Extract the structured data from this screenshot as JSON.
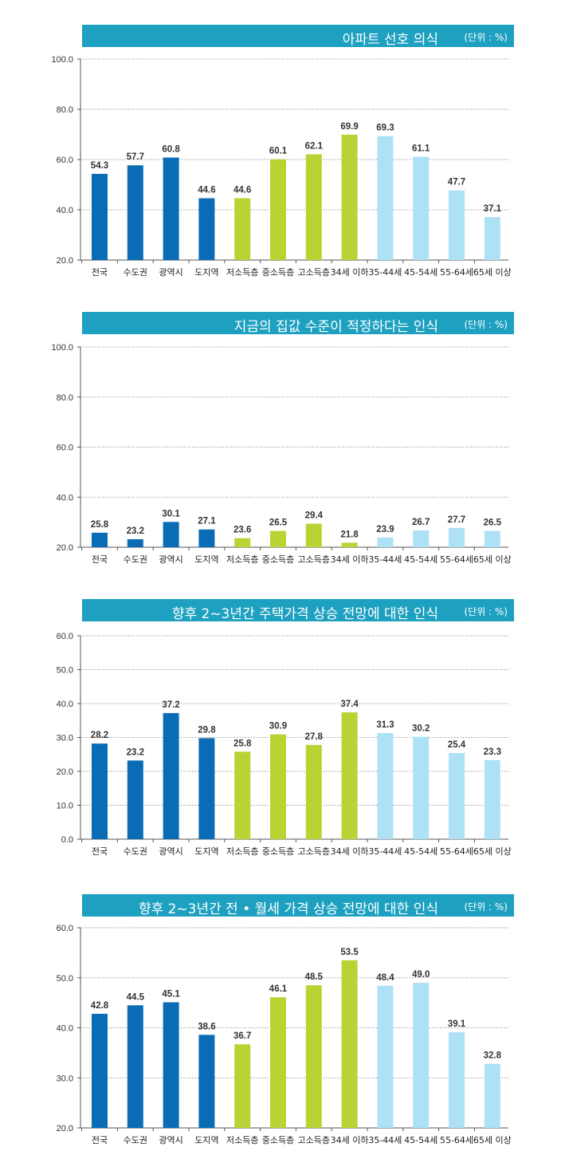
{
  "colors": {
    "title_bg": "#1ea1c0",
    "region": "#0a6cb4",
    "floor": "#b9d334",
    "age": "#aee0f6"
  },
  "chart_data": [
    {
      "type": "bar",
      "title": "아파트 선호 의식",
      "unit": "(단위 : %)",
      "categories": [
        "전국",
        "수도권",
        "광역시",
        "도지역",
        "저소득층",
        "중소득층",
        "고소득층",
        "34세 이하",
        "35-44세",
        "45-54세",
        "55-64세",
        "65세 이상"
      ],
      "values": [
        54.3,
        57.7,
        60.8,
        44.6,
        44.6,
        60.1,
        62.1,
        69.9,
        69.3,
        61.1,
        47.7,
        37.1
      ],
      "groups": [
        "region",
        "region",
        "region",
        "region",
        "floor",
        "floor",
        "floor",
        "floor",
        "age",
        "age",
        "age",
        "age"
      ],
      "ylim": [
        20,
        100
      ],
      "yticks": [
        "20.0",
        "40.0",
        "60.0",
        "80.0",
        "100.0"
      ],
      "grid": true
    },
    {
      "type": "bar",
      "title": "지금의 집값 수준이 적정하다는 인식",
      "unit": "(단위 : %)",
      "categories": [
        "전국",
        "수도권",
        "광역시",
        "도지역",
        "저소득층",
        "중소득층",
        "고소득층",
        "34세 이하",
        "35-44세",
        "45-54세",
        "55-64세",
        "65세 이상"
      ],
      "values": [
        25.8,
        23.2,
        30.1,
        27.1,
        23.6,
        26.5,
        29.4,
        21.8,
        23.9,
        26.7,
        27.7,
        26.5
      ],
      "groups": [
        "region",
        "region",
        "region",
        "region",
        "floor",
        "floor",
        "floor",
        "floor",
        "age",
        "age",
        "age",
        "age"
      ],
      "ylim": [
        20,
        100
      ],
      "yticks": [
        "20.0",
        "40.0",
        "60.0",
        "80.0",
        "100.0"
      ],
      "grid": true
    },
    {
      "type": "bar",
      "title": "향후 2~3년간 주택가격 상승 전망에 대한 인식",
      "unit": "(단위 : %)",
      "categories": [
        "전국",
        "수도권",
        "광역시",
        "도지역",
        "저소득층",
        "중소득층",
        "고소득층",
        "34세 이하",
        "35-44세",
        "45-54세",
        "55-64세",
        "65세 이상"
      ],
      "values": [
        28.2,
        23.2,
        37.2,
        29.8,
        25.8,
        30.9,
        27.8,
        37.4,
        31.3,
        30.2,
        25.4,
        23.3
      ],
      "groups": [
        "region",
        "region",
        "region",
        "region",
        "floor",
        "floor",
        "floor",
        "floor",
        "age",
        "age",
        "age",
        "age"
      ],
      "ylim": [
        0,
        60
      ],
      "yticks": [
        "0.0",
        "10.0",
        "20.0",
        "30.0",
        "40.0",
        "50.0",
        "60.0"
      ],
      "grid": true
    },
    {
      "type": "bar",
      "title": "향후 2~3년간 전 • 월세 가격 상승 전망에 대한 인식",
      "unit": "(단위 : %)",
      "categories": [
        "전국",
        "수도권",
        "광역시",
        "도지역",
        "저소득층",
        "중소득층",
        "고소득층",
        "34세 이하",
        "35-44세",
        "45-54세",
        "55-64세",
        "65세 이상"
      ],
      "values": [
        42.8,
        44.5,
        45.1,
        38.6,
        36.7,
        46.1,
        48.5,
        53.5,
        48.4,
        49.0,
        39.1,
        32.8
      ],
      "groups": [
        "region",
        "region",
        "region",
        "region",
        "floor",
        "floor",
        "floor",
        "floor",
        "age",
        "age",
        "age",
        "age"
      ],
      "ylim": [
        20,
        60
      ],
      "yticks": [
        "20.0",
        "30.0",
        "40.0",
        "50.0",
        "60.0"
      ],
      "grid": true
    }
  ]
}
